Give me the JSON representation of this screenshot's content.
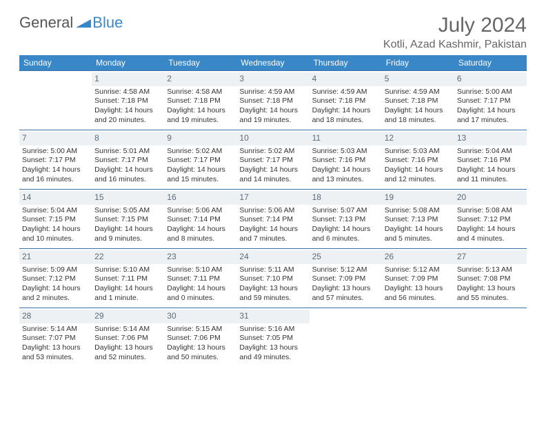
{
  "logo": {
    "text1": "General",
    "text2": "Blue"
  },
  "title": "July 2024",
  "location": "Kotli, Azad Kashmir, Pakistan",
  "colors": {
    "header_bg": "#3a87c8",
    "header_text": "#ffffff",
    "week_border": "#3a6fa8",
    "daynum_bg": "#eef1f4",
    "daynum_text": "#5a6a78",
    "body_text": "#333333",
    "title_text": "#666666"
  },
  "weekdays": [
    "Sunday",
    "Monday",
    "Tuesday",
    "Wednesday",
    "Thursday",
    "Friday",
    "Saturday"
  ],
  "weeks": [
    [
      null,
      {
        "n": "1",
        "sr": "Sunrise: 4:58 AM",
        "ss": "Sunset: 7:18 PM",
        "dl": "Daylight: 14 hours and 20 minutes."
      },
      {
        "n": "2",
        "sr": "Sunrise: 4:58 AM",
        "ss": "Sunset: 7:18 PM",
        "dl": "Daylight: 14 hours and 19 minutes."
      },
      {
        "n": "3",
        "sr": "Sunrise: 4:59 AM",
        "ss": "Sunset: 7:18 PM",
        "dl": "Daylight: 14 hours and 19 minutes."
      },
      {
        "n": "4",
        "sr": "Sunrise: 4:59 AM",
        "ss": "Sunset: 7:18 PM",
        "dl": "Daylight: 14 hours and 18 minutes."
      },
      {
        "n": "5",
        "sr": "Sunrise: 4:59 AM",
        "ss": "Sunset: 7:18 PM",
        "dl": "Daylight: 14 hours and 18 minutes."
      },
      {
        "n": "6",
        "sr": "Sunrise: 5:00 AM",
        "ss": "Sunset: 7:17 PM",
        "dl": "Daylight: 14 hours and 17 minutes."
      }
    ],
    [
      {
        "n": "7",
        "sr": "Sunrise: 5:00 AM",
        "ss": "Sunset: 7:17 PM",
        "dl": "Daylight: 14 hours and 16 minutes."
      },
      {
        "n": "8",
        "sr": "Sunrise: 5:01 AM",
        "ss": "Sunset: 7:17 PM",
        "dl": "Daylight: 14 hours and 16 minutes."
      },
      {
        "n": "9",
        "sr": "Sunrise: 5:02 AM",
        "ss": "Sunset: 7:17 PM",
        "dl": "Daylight: 14 hours and 15 minutes."
      },
      {
        "n": "10",
        "sr": "Sunrise: 5:02 AM",
        "ss": "Sunset: 7:17 PM",
        "dl": "Daylight: 14 hours and 14 minutes."
      },
      {
        "n": "11",
        "sr": "Sunrise: 5:03 AM",
        "ss": "Sunset: 7:16 PM",
        "dl": "Daylight: 14 hours and 13 minutes."
      },
      {
        "n": "12",
        "sr": "Sunrise: 5:03 AM",
        "ss": "Sunset: 7:16 PM",
        "dl": "Daylight: 14 hours and 12 minutes."
      },
      {
        "n": "13",
        "sr": "Sunrise: 5:04 AM",
        "ss": "Sunset: 7:16 PM",
        "dl": "Daylight: 14 hours and 11 minutes."
      }
    ],
    [
      {
        "n": "14",
        "sr": "Sunrise: 5:04 AM",
        "ss": "Sunset: 7:15 PM",
        "dl": "Daylight: 14 hours and 10 minutes."
      },
      {
        "n": "15",
        "sr": "Sunrise: 5:05 AM",
        "ss": "Sunset: 7:15 PM",
        "dl": "Daylight: 14 hours and 9 minutes."
      },
      {
        "n": "16",
        "sr": "Sunrise: 5:06 AM",
        "ss": "Sunset: 7:14 PM",
        "dl": "Daylight: 14 hours and 8 minutes."
      },
      {
        "n": "17",
        "sr": "Sunrise: 5:06 AM",
        "ss": "Sunset: 7:14 PM",
        "dl": "Daylight: 14 hours and 7 minutes."
      },
      {
        "n": "18",
        "sr": "Sunrise: 5:07 AM",
        "ss": "Sunset: 7:13 PM",
        "dl": "Daylight: 14 hours and 6 minutes."
      },
      {
        "n": "19",
        "sr": "Sunrise: 5:08 AM",
        "ss": "Sunset: 7:13 PM",
        "dl": "Daylight: 14 hours and 5 minutes."
      },
      {
        "n": "20",
        "sr": "Sunrise: 5:08 AM",
        "ss": "Sunset: 7:12 PM",
        "dl": "Daylight: 14 hours and 4 minutes."
      }
    ],
    [
      {
        "n": "21",
        "sr": "Sunrise: 5:09 AM",
        "ss": "Sunset: 7:12 PM",
        "dl": "Daylight: 14 hours and 2 minutes."
      },
      {
        "n": "22",
        "sr": "Sunrise: 5:10 AM",
        "ss": "Sunset: 7:11 PM",
        "dl": "Daylight: 14 hours and 1 minute."
      },
      {
        "n": "23",
        "sr": "Sunrise: 5:10 AM",
        "ss": "Sunset: 7:11 PM",
        "dl": "Daylight: 14 hours and 0 minutes."
      },
      {
        "n": "24",
        "sr": "Sunrise: 5:11 AM",
        "ss": "Sunset: 7:10 PM",
        "dl": "Daylight: 13 hours and 59 minutes."
      },
      {
        "n": "25",
        "sr": "Sunrise: 5:12 AM",
        "ss": "Sunset: 7:09 PM",
        "dl": "Daylight: 13 hours and 57 minutes."
      },
      {
        "n": "26",
        "sr": "Sunrise: 5:12 AM",
        "ss": "Sunset: 7:09 PM",
        "dl": "Daylight: 13 hours and 56 minutes."
      },
      {
        "n": "27",
        "sr": "Sunrise: 5:13 AM",
        "ss": "Sunset: 7:08 PM",
        "dl": "Daylight: 13 hours and 55 minutes."
      }
    ],
    [
      {
        "n": "28",
        "sr": "Sunrise: 5:14 AM",
        "ss": "Sunset: 7:07 PM",
        "dl": "Daylight: 13 hours and 53 minutes."
      },
      {
        "n": "29",
        "sr": "Sunrise: 5:14 AM",
        "ss": "Sunset: 7:06 PM",
        "dl": "Daylight: 13 hours and 52 minutes."
      },
      {
        "n": "30",
        "sr": "Sunrise: 5:15 AM",
        "ss": "Sunset: 7:06 PM",
        "dl": "Daylight: 13 hours and 50 minutes."
      },
      {
        "n": "31",
        "sr": "Sunrise: 5:16 AM",
        "ss": "Sunset: 7:05 PM",
        "dl": "Daylight: 13 hours and 49 minutes."
      },
      null,
      null,
      null
    ]
  ]
}
